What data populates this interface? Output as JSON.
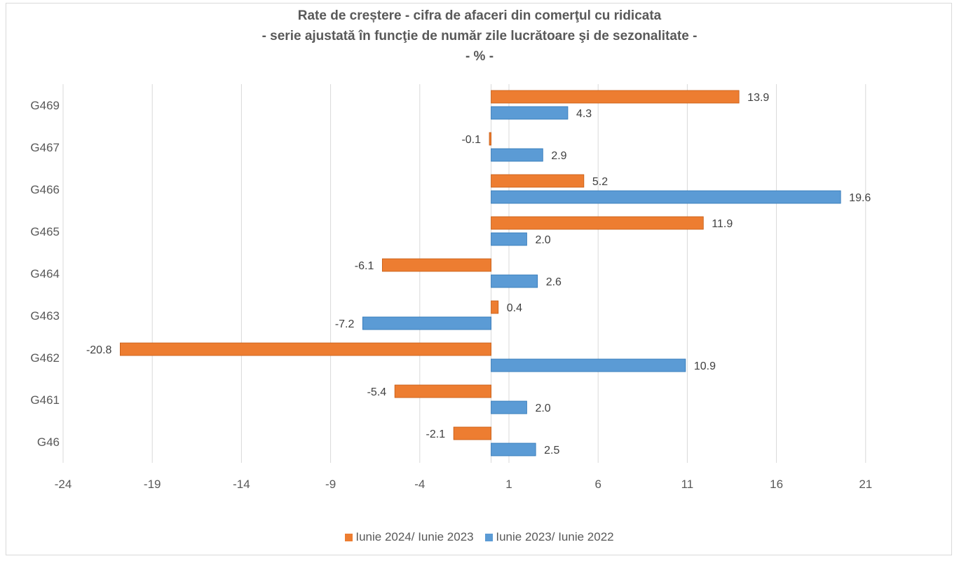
{
  "chart_data": {
    "type": "bar",
    "orientation": "horizontal",
    "title": [
      "Rate de creștere - cifra de afaceri din comerţul cu ridicata",
      "- serie ajustată în funcţie de număr zile lucrătoare şi de sezonalitate -",
      "- % -"
    ],
    "categories": [
      "G469",
      "G467",
      "G466",
      "G465",
      "G464",
      "G463",
      "G462",
      "G461",
      "G46"
    ],
    "series": [
      {
        "name": "Iunie 2024/ Iunie 2023",
        "color": "#ed7d31",
        "values": [
          13.9,
          -0.1,
          5.2,
          11.9,
          -6.1,
          0.4,
          -20.8,
          -5.4,
          -2.1
        ]
      },
      {
        "name": "Iunie 2023/ Iunie 2022",
        "color": "#5b9bd5",
        "values": [
          4.3,
          2.9,
          19.6,
          2.0,
          2.6,
          -7.2,
          10.9,
          2.0,
          2.5
        ]
      }
    ],
    "x_ticks": [
      -24,
      -19,
      -14,
      -9,
      -4,
      1,
      6,
      11,
      16,
      21
    ],
    "xlim": [
      -24,
      26
    ],
    "xlabel": "",
    "ylabel": "",
    "grid": "vertical",
    "legend_position": "bottom"
  }
}
